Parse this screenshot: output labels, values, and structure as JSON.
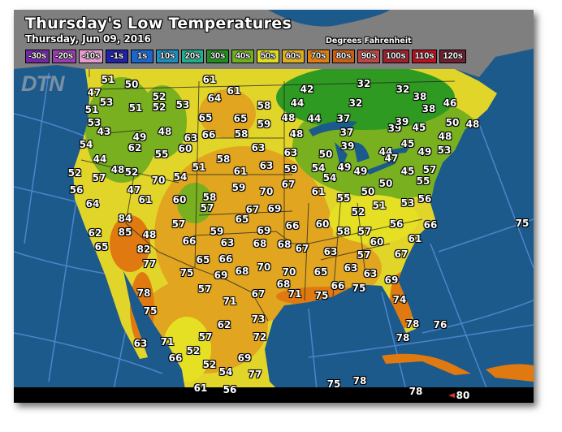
{
  "header": {
    "title": "Thursday's Low Temperatures",
    "subtitle": "Thursday, Jun 09, 2016",
    "units": "Degrees Fahrenheit"
  },
  "logo": "DTN",
  "legend": [
    {
      "label": "-30s",
      "color": "#7326a6"
    },
    {
      "label": "-20s",
      "color": "#9a3cb0"
    },
    {
      "label": "-10s",
      "color": "#e79ccf"
    },
    {
      "label": "-1s",
      "color": "#2222a8"
    },
    {
      "label": "1s",
      "color": "#1a66cc"
    },
    {
      "label": "10s",
      "color": "#1a8fc0"
    },
    {
      "label": "20s",
      "color": "#1fae8e"
    },
    {
      "label": "30s",
      "color": "#1f8f1f"
    },
    {
      "label": "40s",
      "color": "#6fb01f"
    },
    {
      "label": "50s",
      "color": "#dede1f"
    },
    {
      "label": "60s",
      "color": "#deb01f"
    },
    {
      "label": "70s",
      "color": "#de7f10"
    },
    {
      "label": "80s",
      "color": "#cf5f10"
    },
    {
      "label": "90s",
      "color": "#c04545"
    },
    {
      "label": "100s",
      "color": "#a02030"
    },
    {
      "label": "110s",
      "color": "#c01020"
    },
    {
      "label": "120s",
      "color": "#6e1f30"
    }
  ],
  "colors": {
    "ocean": "#1d5a8c",
    "canada_gray": "#7f7f7f",
    "grid": "#5a8fd8"
  },
  "temperatures": [
    51,
    50,
    47,
    53,
    51,
    51,
    52,
    52,
    53,
    61,
    61,
    64,
    58,
    65,
    65,
    59,
    58,
    63,
    53,
    43,
    49,
    48,
    63,
    66,
    62,
    60,
    55,
    54,
    44,
    48,
    52,
    52,
    57,
    70,
    54,
    51,
    58,
    61,
    63,
    59,
    70,
    47,
    56,
    64,
    61,
    60,
    58,
    57,
    84,
    85,
    48,
    62,
    65,
    57,
    59,
    67,
    65,
    69,
    69,
    66,
    66,
    63,
    68,
    68,
    67,
    82,
    77,
    65,
    66,
    75,
    69,
    68,
    70,
    70,
    68,
    57,
    71,
    67,
    78,
    75,
    73,
    62,
    72,
    57,
    63,
    71,
    52,
    66,
    52,
    54,
    69,
    77,
    61,
    56,
    42,
    44,
    48,
    44,
    37,
    37,
    48,
    39,
    63,
    50,
    59,
    54,
    49,
    49,
    54,
    67,
    61,
    50,
    50,
    55,
    51,
    52,
    53,
    56,
    45,
    57,
    55,
    44,
    47,
    45,
    49,
    53,
    48,
    39,
    39,
    45,
    50,
    48,
    38,
    46,
    32,
    32,
    38,
    32,
    66,
    56,
    75,
    60,
    58,
    57,
    61,
    67,
    60,
    63,
    57,
    65,
    63,
    63,
    69,
    66,
    75,
    71,
    75,
    74,
    78,
    76,
    78,
    75,
    78,
    78,
    80
  ]
}
